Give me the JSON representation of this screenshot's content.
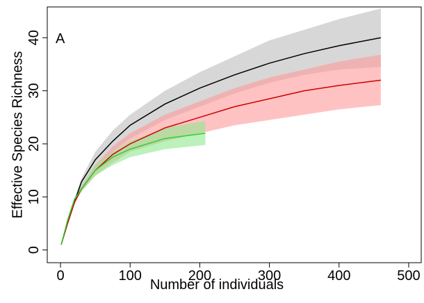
{
  "chart_data": {
    "type": "line",
    "panel_label": "A",
    "x_label": "Number of individuals",
    "y_label": "Effective Species Richness",
    "xlim": [
      -19,
      518
    ],
    "ylim": [
      -2.4,
      45.8
    ],
    "xticks": [
      0,
      100,
      200,
      300,
      400,
      500
    ],
    "yticks": [
      0,
      10,
      20,
      30,
      40
    ],
    "series": [
      {
        "color": "#000000",
        "band_color": "#bdbdbd",
        "x": [
          1,
          10,
          20,
          30,
          50,
          75,
          100,
          150,
          200,
          250,
          300,
          350,
          400,
          460
        ],
        "values": [
          1,
          5,
          9,
          12.8,
          17,
          20.5,
          23.5,
          27.5,
          30.5,
          33,
          35.2,
          37,
          38.5,
          40
        ],
        "lower": [
          1,
          4.5,
          8.5,
          12,
          15.5,
          18.5,
          21,
          24.5,
          27,
          29.5,
          31.5,
          33,
          34,
          34.5
        ],
        "upper": [
          1,
          5.5,
          9.5,
          13.5,
          18.5,
          22.5,
          25.5,
          30,
          33.5,
          36.5,
          39.5,
          41.5,
          43.5,
          45.5
        ]
      },
      {
        "color": "#cc0000",
        "band_color": "#ff9a9a",
        "x": [
          1,
          10,
          20,
          30,
          50,
          75,
          100,
          150,
          200,
          250,
          300,
          350,
          400,
          460
        ],
        "values": [
          1,
          5,
          9,
          11.5,
          15,
          18,
          20,
          23,
          25,
          27,
          28.5,
          30,
          31,
          32
        ],
        "lower": [
          1,
          4.5,
          8.5,
          11,
          14,
          16.5,
          18.5,
          20.5,
          22,
          23.5,
          24.5,
          25.5,
          26.5,
          27.3
        ],
        "upper": [
          1,
          5.5,
          9.5,
          12,
          16,
          19.5,
          22,
          25.5,
          28,
          30.5,
          32.5,
          34,
          35.5,
          36.8
        ]
      },
      {
        "color": "#33cc33",
        "band_color": "#8ee88e",
        "x": [
          1,
          10,
          20,
          30,
          50,
          75,
          100,
          150,
          208
        ],
        "values": [
          1,
          5.5,
          9.5,
          11.5,
          15,
          17.5,
          19,
          21,
          22
        ],
        "lower": [
          1,
          5,
          9,
          11,
          14,
          16,
          17.5,
          19,
          19.8
        ],
        "upper": [
          1,
          6,
          10,
          12,
          16,
          18.5,
          20.5,
          23,
          24.3
        ]
      }
    ]
  }
}
